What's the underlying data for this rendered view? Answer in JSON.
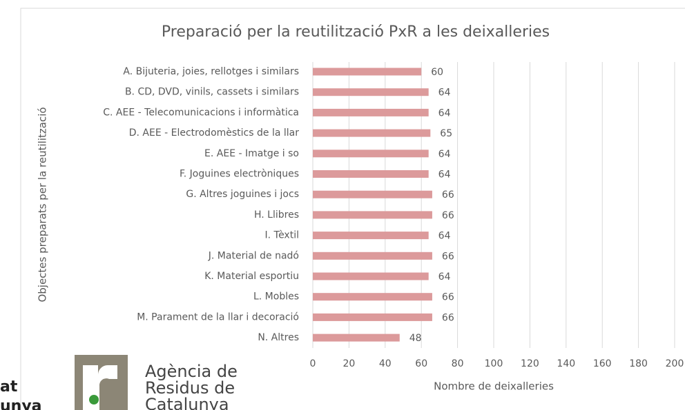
{
  "chart_data": {
    "type": "bar",
    "orientation": "horizontal",
    "title": "Preparació per la reutilització PxR a les deixalleries",
    "x_label": "Nombre de deixalleries",
    "y_label": "Objectes preparats per la reutilització",
    "categories": [
      "A. Bijuteria, joies, rellotges i similars",
      "B. CD, DVD, vinils, cassets i similars",
      "C. AEE - Telecomunicacions i informàtica",
      "D. AEE - Electrodomèstics de la llar",
      "E. AEE - Imatge i so",
      "F. Joguines electròniques",
      "G. Altres joguines i jocs",
      "H. Llibres",
      "I. Tèxtil",
      "J. Material de nadó",
      "K. Material esportiu",
      "L. Mobles",
      "M. Parament de la llar i decoració",
      "N. Altres"
    ],
    "values": [
      60,
      64,
      64,
      65,
      64,
      64,
      66,
      66,
      64,
      66,
      64,
      66,
      66,
      48
    ],
    "color": "#dc9a9b",
    "xlim": [
      0,
      200
    ],
    "xticks": [
      0,
      20,
      40,
      60,
      80,
      100,
      120,
      140,
      160,
      180,
      200
    ],
    "grid": true
  },
  "logo": {
    "left_fragments": [
      "at",
      "unya"
    ],
    "lines": [
      "Agència de",
      "Residus de",
      "Catalunya"
    ]
  }
}
